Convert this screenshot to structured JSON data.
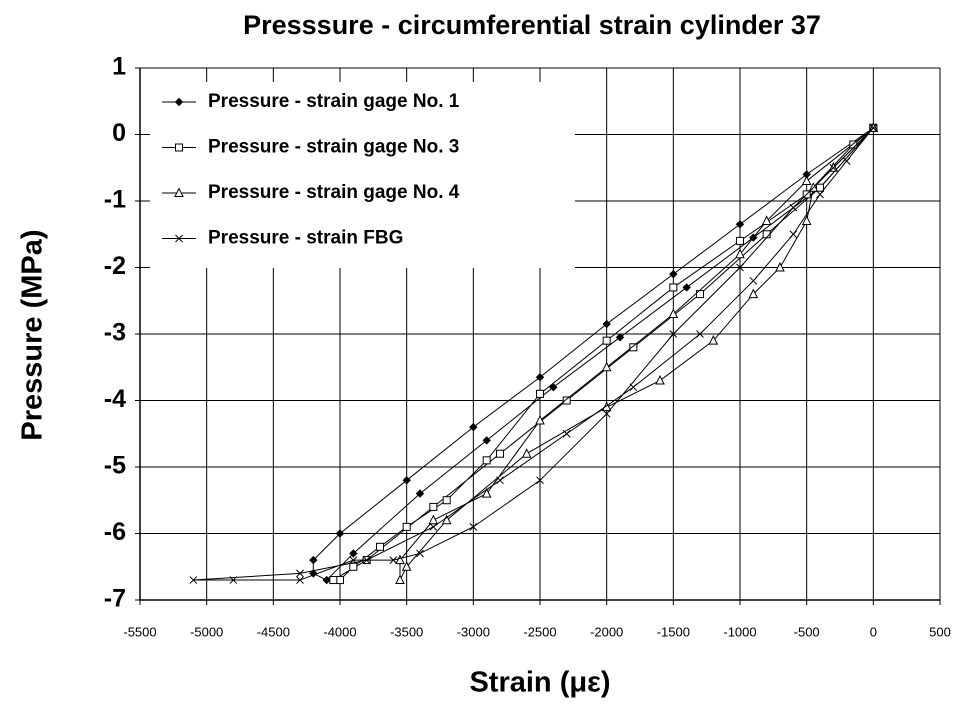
{
  "chart_data": {
    "type": "line",
    "title": "Presssure - circumferential strain cylinder 37",
    "x_label": "Strain (με)",
    "y_label": "Pressure (MPa)",
    "xlim": [
      -5500,
      500
    ],
    "ylim": [
      -7,
      1
    ],
    "xticks": [
      -5500,
      -5000,
      -4500,
      -4000,
      -3500,
      -3000,
      -2500,
      -2000,
      -1500,
      -1000,
      -500,
      0,
      500
    ],
    "yticks": [
      1,
      0,
      -1,
      -2,
      -3,
      -4,
      -5,
      -6,
      -7
    ],
    "grid": true,
    "legend": "upper left",
    "series": [
      {
        "name": "Pressure - strain gage No. 1",
        "color": "#000000",
        "marker": "diamond",
        "x": [
          0,
          -500,
          -1000,
          -1500,
          -2000,
          -2500,
          -3000,
          -3500,
          -4000,
          -4200,
          -4200,
          -4100,
          -3900,
          -3400,
          -2900,
          -2400,
          -1900,
          -1400,
          -900,
          -400,
          0
        ],
        "values": [
          0.1,
          -0.6,
          -1.35,
          -2.1,
          -2.85,
          -3.65,
          -4.4,
          -5.2,
          -6.0,
          -6.4,
          -6.6,
          -6.7,
          -6.3,
          -5.4,
          -4.6,
          -3.8,
          -3.05,
          -2.3,
          -1.55,
          -0.8,
          0.1
        ]
      },
      {
        "name": "Pressure - strain gage No. 3",
        "color": "#000000",
        "marker": "square",
        "x": [
          0,
          -150,
          -500,
          -1000,
          -1500,
          -2000,
          -2500,
          -2900,
          -3200,
          -3500,
          -3700,
          -3900,
          -4000,
          -4050,
          -3800,
          -3300,
          -2800,
          -2300,
          -1800,
          -1300,
          -800,
          -400,
          0
        ],
        "values": [
          0.1,
          -0.15,
          -0.9,
          -1.6,
          -2.3,
          -3.1,
          -3.9,
          -4.9,
          -5.5,
          -5.9,
          -6.2,
          -6.5,
          -6.7,
          -6.7,
          -6.4,
          -5.6,
          -4.8,
          -4.0,
          -3.2,
          -2.4,
          -1.5,
          -0.8,
          0.1
        ]
      },
      {
        "name": "Pressure - strain gage No. 4",
        "color": "#000000",
        "marker": "triangle",
        "x": [
          0,
          -500,
          -800,
          -1000,
          -1500,
          -2000,
          -2500,
          -2900,
          -3300,
          -3550,
          -3550,
          -3500,
          -3200,
          -2600,
          -2000,
          -1600,
          -1200,
          -900,
          -700,
          -500,
          -450,
          -300,
          0
        ],
        "values": [
          0.1,
          -0.7,
          -1.3,
          -1.8,
          -2.7,
          -3.5,
          -4.3,
          -5.4,
          -5.8,
          -6.4,
          -6.7,
          -6.5,
          -5.8,
          -4.8,
          -4.1,
          -3.7,
          -3.1,
          -2.4,
          -2.0,
          -1.3,
          -0.8,
          -0.5,
          0.1
        ]
      },
      {
        "name": "Pressure - strain FBG",
        "color": "#000000",
        "marker": "x",
        "x": [
          0,
          -300,
          -600,
          -1000,
          -1500,
          -2000,
          -2500,
          -3000,
          -3400,
          -3600,
          -3900,
          -4300,
          -4800,
          -5100,
          -4300,
          -3800,
          -3300,
          -2800,
          -2300,
          -1800,
          -1300,
          -900,
          -600,
          -400,
          -200,
          0
        ],
        "values": [
          0.1,
          -0.5,
          -1.1,
          -2.0,
          -3.0,
          -4.2,
          -5.2,
          -5.9,
          -6.3,
          -6.4,
          -6.4,
          -6.7,
          -6.7,
          -6.7,
          -6.6,
          -6.4,
          -5.9,
          -5.2,
          -4.5,
          -3.8,
          -3.0,
          -2.2,
          -1.5,
          -0.9,
          -0.4,
          0.1
        ]
      }
    ]
  }
}
